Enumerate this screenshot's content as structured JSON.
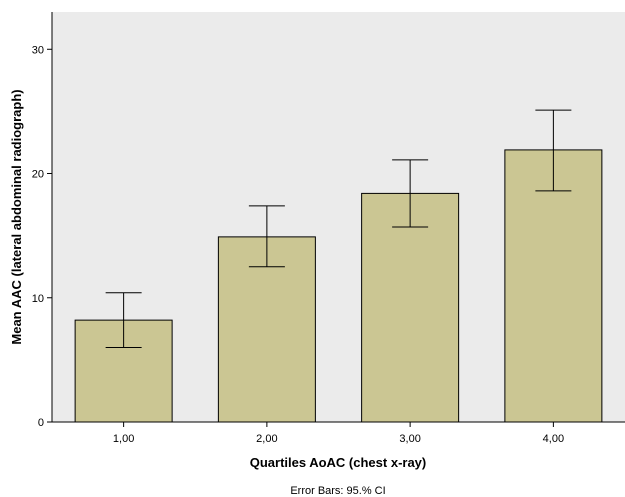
{
  "chart_data": {
    "type": "bar",
    "categories": [
      "1,00",
      "2,00",
      "3,00",
      "4,00"
    ],
    "values": [
      8.2,
      14.9,
      18.4,
      21.9
    ],
    "error_bars": {
      "lower": [
        6.0,
        12.5,
        15.7,
        18.6
      ],
      "upper": [
        10.4,
        17.4,
        21.1,
        25.1
      ]
    },
    "xlabel": "Quartiles AoAC (chest x-ray)",
    "ylabel": "Mean AAC (lateral abdominal radiograph)",
    "ylim": [
      0,
      33
    ],
    "yticks": [
      0,
      10,
      20,
      30
    ],
    "footnote": "Error Bars: 95.% CI",
    "grid": false,
    "colors": {
      "bar_fill": "#cbc693",
      "bar_stroke": "#000000",
      "plot_background": "#ebebeb",
      "page_background": "#ffffff"
    }
  }
}
